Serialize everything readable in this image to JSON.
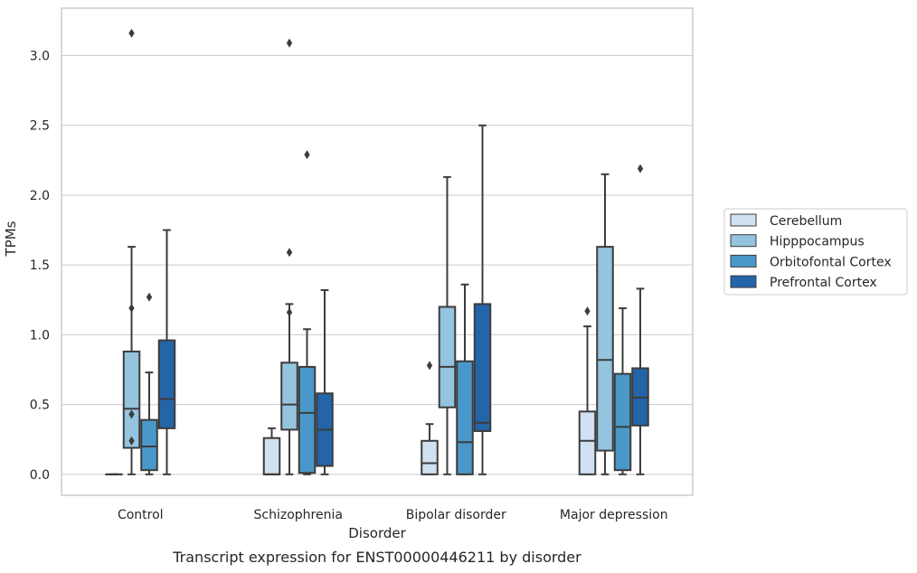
{
  "chart_data": {
    "type": "box",
    "caption": "Transcript expression for ENST00000446211 by disorder",
    "xlabel": "Disorder",
    "ylabel": "TPMs",
    "ylim": [
      -0.15,
      3.34
    ],
    "yticks": [
      0.0,
      0.5,
      1.0,
      1.5,
      2.0,
      2.5,
      3.0
    ],
    "ytick_labels": [
      "0.0",
      "0.5",
      "1.0",
      "1.5",
      "2.0",
      "2.5",
      "3.0"
    ],
    "grid": "horizontal",
    "legend_position": "right",
    "categories": [
      "Control",
      "Schizophrenia",
      "Bipolar disorder",
      "Major depression"
    ],
    "series": [
      {
        "name": "Cerebellum",
        "color": "#d0e1f2",
        "boxes": [
          {
            "min": 0.0,
            "q1": 0.0,
            "median": 0.0,
            "q3": 0.0,
            "max": 0.0,
            "outliers": []
          },
          {
            "min": 0.0,
            "q1": 0.0,
            "median": 0.0,
            "q3": 0.26,
            "max": 0.33,
            "outliers": []
          },
          {
            "min": 0.0,
            "q1": 0.0,
            "median": 0.08,
            "q3": 0.24,
            "max": 0.36,
            "outliers": [
              0.78
            ]
          },
          {
            "min": 0.0,
            "q1": 0.0,
            "median": 0.24,
            "q3": 0.45,
            "max": 1.06,
            "outliers": [
              1.17
            ]
          }
        ]
      },
      {
        "name": "Hipppocampus",
        "color": "#94c4df",
        "boxes": [
          {
            "min": 0.0,
            "q1": 0.19,
            "median": 0.47,
            "q3": 0.88,
            "max": 1.63,
            "outliers": [
              3.16,
              1.19,
              0.43,
              0.24
            ]
          },
          {
            "min": 0.0,
            "q1": 0.32,
            "median": 0.5,
            "q3": 0.8,
            "max": 1.22,
            "outliers": [
              3.09,
              1.59,
              1.16
            ]
          },
          {
            "min": 0.0,
            "q1": 0.48,
            "median": 0.77,
            "q3": 1.2,
            "max": 2.13,
            "outliers": []
          },
          {
            "min": 0.0,
            "q1": 0.17,
            "median": 0.82,
            "q3": 1.63,
            "max": 2.15,
            "outliers": []
          }
        ]
      },
      {
        "name": "Orbitofontal Cortex",
        "color": "#4a98c9",
        "boxes": [
          {
            "min": 0.0,
            "q1": 0.03,
            "median": 0.2,
            "q3": 0.39,
            "max": 0.73,
            "outliers": [
              1.27
            ]
          },
          {
            "min": 0.0,
            "q1": 0.01,
            "median": 0.44,
            "q3": 0.77,
            "max": 1.04,
            "outliers": [
              2.29
            ]
          },
          {
            "min": 0.0,
            "q1": 0.0,
            "median": 0.23,
            "q3": 0.81,
            "max": 1.36,
            "outliers": []
          },
          {
            "min": 0.0,
            "q1": 0.03,
            "median": 0.34,
            "q3": 0.72,
            "max": 1.19,
            "outliers": []
          }
        ]
      },
      {
        "name": "Prefrontal Cortex",
        "color": "#2464a9",
        "boxes": [
          {
            "min": 0.0,
            "q1": 0.33,
            "median": 0.54,
            "q3": 0.96,
            "max": 1.75,
            "outliers": []
          },
          {
            "min": 0.0,
            "q1": 0.06,
            "median": 0.32,
            "q3": 0.58,
            "max": 1.32,
            "outliers": []
          },
          {
            "min": 0.0,
            "q1": 0.31,
            "median": 0.37,
            "q3": 1.22,
            "max": 2.5,
            "outliers": []
          },
          {
            "min": 0.0,
            "q1": 0.35,
            "median": 0.55,
            "q3": 0.76,
            "max": 1.33,
            "outliers": [
              2.19
            ]
          }
        ]
      }
    ]
  }
}
